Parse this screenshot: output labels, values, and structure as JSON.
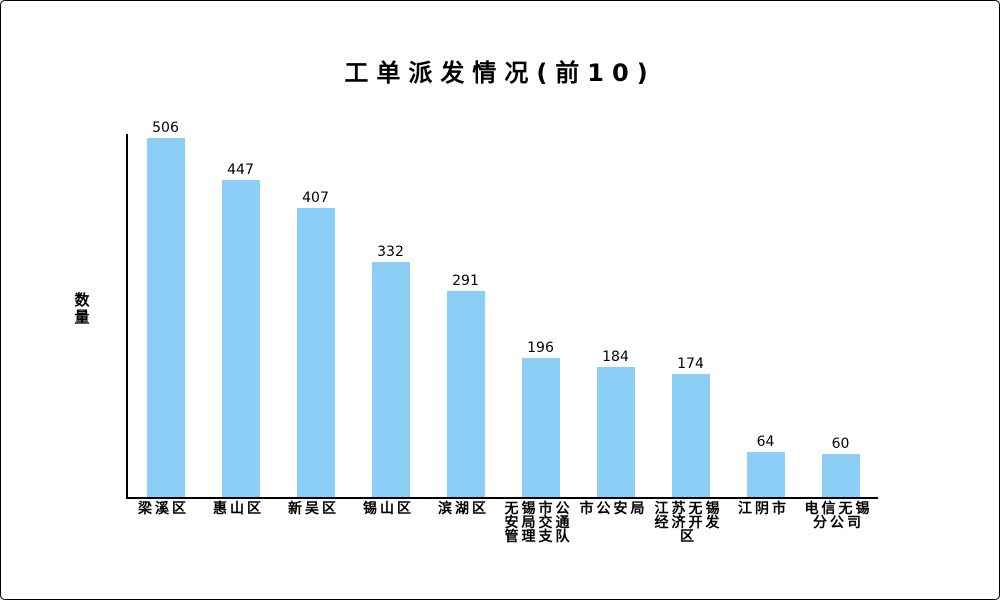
{
  "canvas": {
    "background": "#ffffff",
    "border_color": "#000000"
  },
  "chart_data": {
    "type": "bar",
    "title": "工单派发情况(前10)",
    "xlabel": "",
    "ylabel": "数量",
    "categories": [
      "梁溪区",
      "惠山区",
      "新吴区",
      "锡山区",
      "滨湖区",
      "无锡市公安局交通管理支队",
      "市公安局",
      "江苏无锡经济开发区",
      "江阴市",
      "电信无锡分公司"
    ],
    "category_lines": [
      [
        "梁溪区"
      ],
      [
        "惠山区"
      ],
      [
        "新吴区"
      ],
      [
        "锡山区"
      ],
      [
        "滨湖区"
      ],
      [
        "无锡市公",
        "安局交通",
        "管理支队"
      ],
      [
        "市公安局"
      ],
      [
        "江苏无锡",
        "经济开发",
        "区"
      ],
      [
        "江阴市"
      ],
      [
        "电信无锡",
        "分公司"
      ]
    ],
    "values": [
      506,
      447,
      407,
      332,
      291,
      196,
      184,
      174,
      64,
      60
    ],
    "ylim": [
      0,
      512
    ],
    "grid": false,
    "legend": false,
    "bar_color": "#8BCFF6",
    "axis_color": "#000000",
    "text_color": "#000000"
  }
}
